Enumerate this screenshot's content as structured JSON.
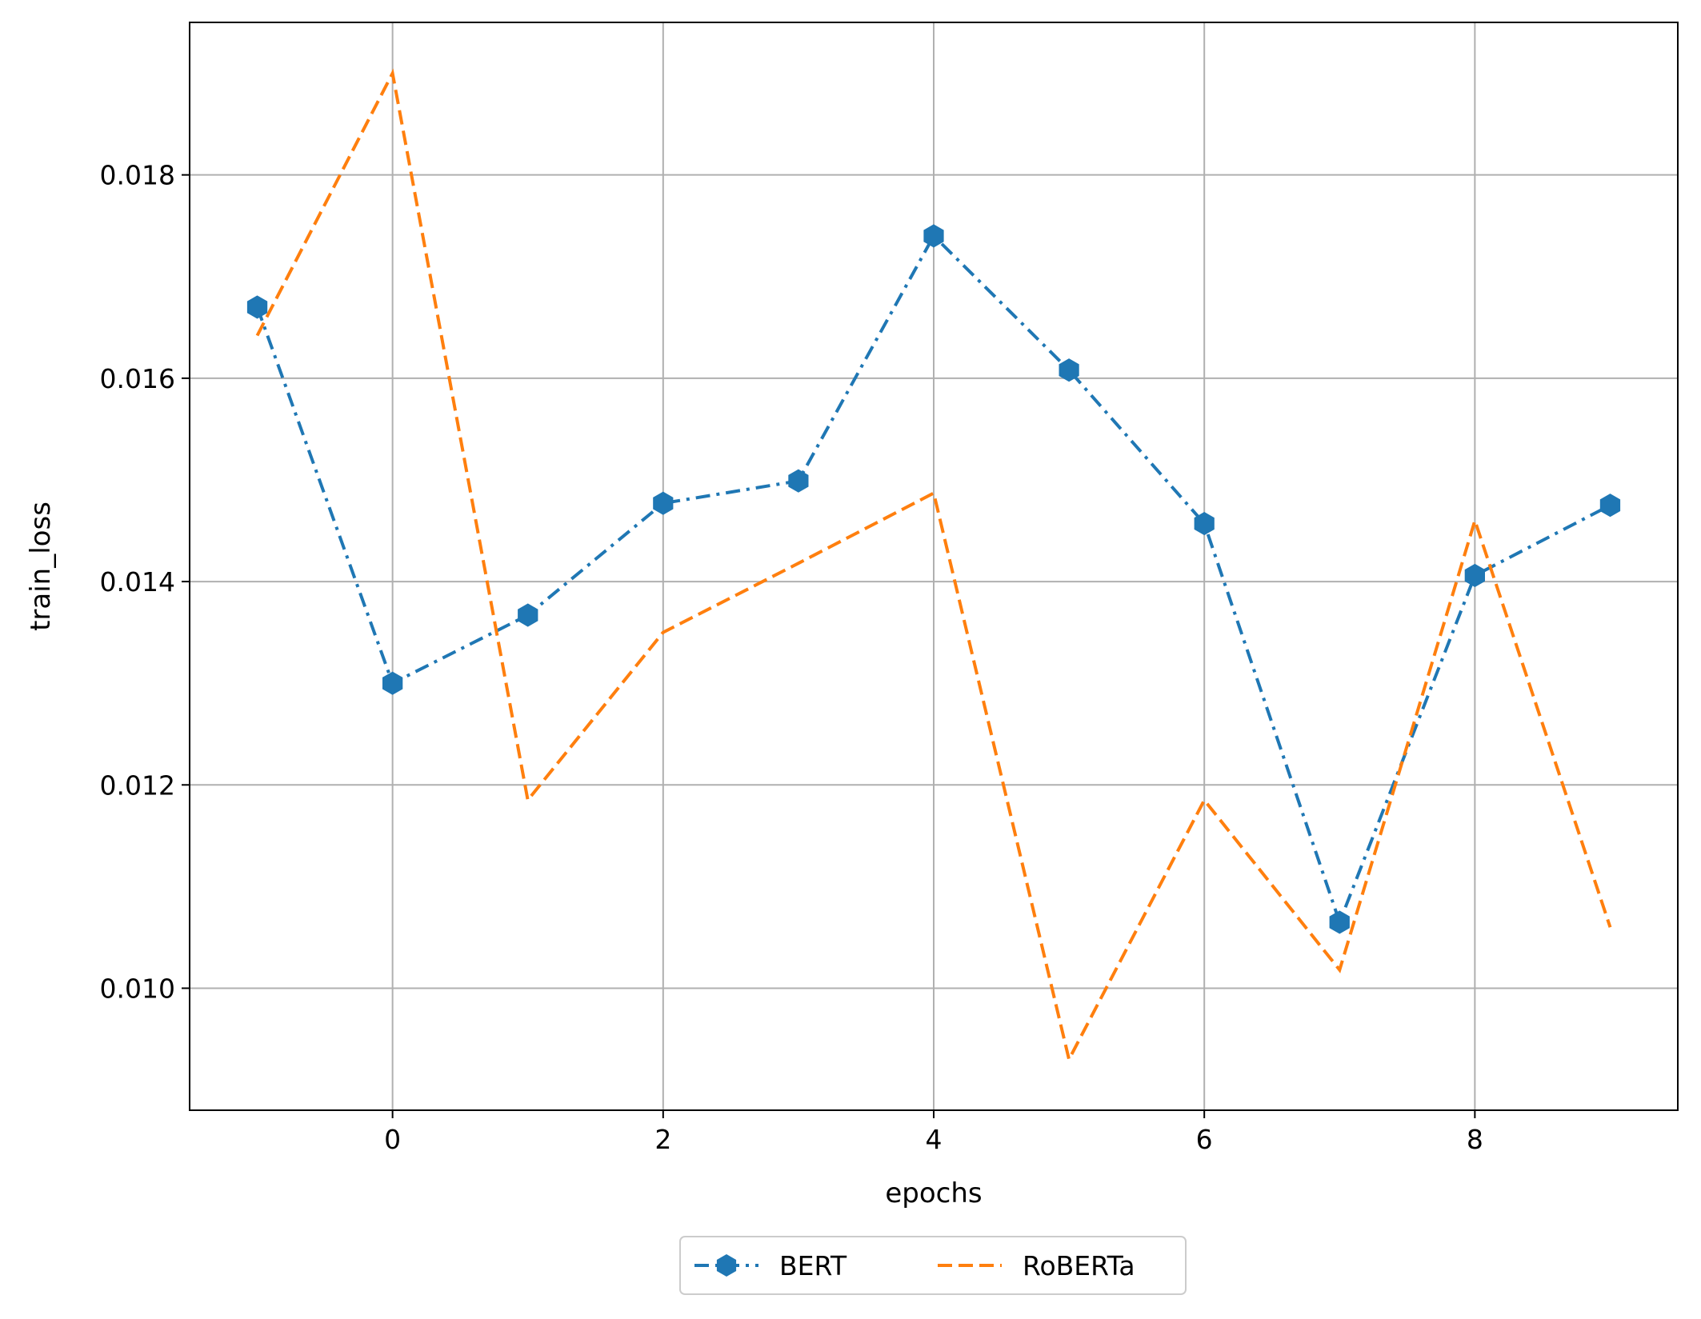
{
  "chart_data": {
    "type": "line",
    "title": "",
    "xlabel": "epochs",
    "ylabel": "train_loss",
    "xlim": [
      -1.5,
      9.5
    ],
    "ylim": [
      0.0088,
      0.0195
    ],
    "xticks": [
      0,
      2,
      4,
      6,
      8
    ],
    "xtick_labels": [
      "0",
      "2",
      "4",
      "6",
      "8"
    ],
    "yticks": [
      0.01,
      0.012,
      0.014,
      0.016,
      0.018
    ],
    "ytick_labels": [
      "0.010",
      "0.012",
      "0.014",
      "0.016",
      "0.018"
    ],
    "grid": true,
    "legend": {
      "position": "bottom-center-outside",
      "columns": 2
    },
    "x": [
      -1,
      0,
      1,
      2,
      3,
      4,
      5,
      6,
      7,
      8,
      9
    ],
    "series": [
      {
        "name": "BERT",
        "color": "#1f77b4",
        "linestyle": "dashdot",
        "marker": "hexagon",
        "values": [
          0.0167,
          0.013,
          0.01367,
          0.01477,
          0.01499,
          0.0174,
          0.01608,
          0.01457,
          0.01065,
          0.01406,
          0.01475
        ]
      },
      {
        "name": "RoBERTa",
        "color": "#ff7f0e",
        "linestyle": "dashed",
        "marker": "none",
        "values": [
          0.01642,
          0.019,
          0.01185,
          0.0135,
          0.01418,
          0.01487,
          0.0093,
          0.01185,
          0.01018,
          0.0146,
          0.0106
        ]
      }
    ]
  }
}
